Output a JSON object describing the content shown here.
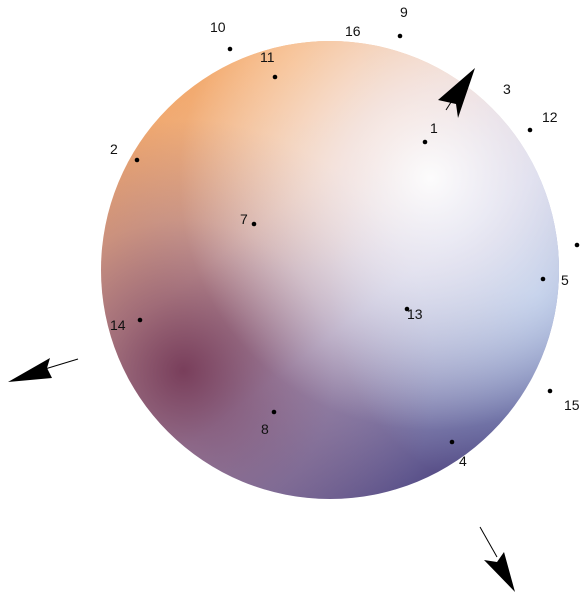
{
  "figure": {
    "points": [
      {
        "id": "p1",
        "label": "1"
      },
      {
        "id": "p2",
        "label": "2"
      },
      {
        "id": "p3",
        "label": "3"
      },
      {
        "id": "p4",
        "label": "4"
      },
      {
        "id": "p5",
        "label": "5"
      },
      {
        "id": "p7",
        "label": "7"
      },
      {
        "id": "p8",
        "label": "8"
      },
      {
        "id": "p9",
        "label": "9"
      },
      {
        "id": "p10",
        "label": "10"
      },
      {
        "id": "p11",
        "label": "11"
      },
      {
        "id": "p12",
        "label": "12"
      },
      {
        "id": "p13",
        "label": "13"
      },
      {
        "id": "p14",
        "label": "14"
      },
      {
        "id": "p15",
        "label": "15"
      },
      {
        "id": "p16",
        "label": "16"
      }
    ],
    "colors": {
      "sphere_top_left": "#e8a070",
      "sphere_highlight": "#fdf6dc",
      "sphere_right": "#b8d4f0",
      "sphere_bottom": "#5a4880",
      "sphere_left": "#7a3850",
      "points": "#000000",
      "arrows": "#000000"
    }
  }
}
